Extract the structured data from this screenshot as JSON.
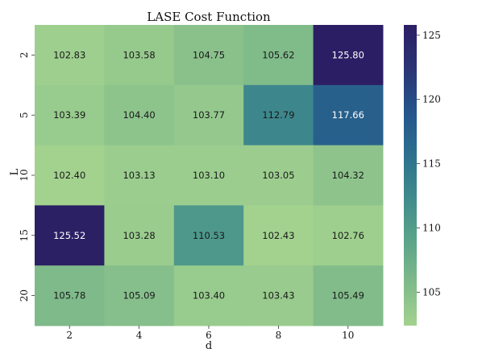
{
  "chart_data": {
    "type": "heatmap",
    "title": "LASE Cost Function",
    "xlabel": "d",
    "ylabel": "L",
    "x_categories": [
      "2",
      "4",
      "6",
      "8",
      "10"
    ],
    "y_categories": [
      "2",
      "5",
      "10",
      "15",
      "20"
    ],
    "values": [
      [
        102.83,
        103.58,
        104.75,
        105.62,
        125.8
      ],
      [
        103.39,
        104.4,
        103.77,
        112.79,
        117.66
      ],
      [
        102.4,
        103.13,
        103.1,
        103.05,
        104.32
      ],
      [
        125.52,
        103.28,
        110.53,
        102.43,
        102.76
      ],
      [
        105.78,
        105.09,
        103.4,
        103.43,
        105.49
      ]
    ],
    "labels": [
      [
        "102.83",
        "103.58",
        "104.75",
        "105.62",
        "125.80"
      ],
      [
        "103.39",
        "104.40",
        "103.77",
        "112.79",
        "117.66"
      ],
      [
        "102.40",
        "103.13",
        "103.10",
        "103.05",
        "104.32"
      ],
      [
        "125.52",
        "103.28",
        "110.53",
        "102.43",
        "102.76"
      ],
      [
        "105.78",
        "105.09",
        "103.40",
        "103.43",
        "105.49"
      ]
    ],
    "colorbar": {
      "range": [
        102.4,
        125.8
      ],
      "ticks": [
        105,
        110,
        115,
        120,
        125
      ],
      "tick_labels": [
        "105",
        "110",
        "115",
        "120",
        "125"
      ],
      "colormap": "crest",
      "color_stops": [
        "#a3d28f",
        "#7fba8a",
        "#5aa38a",
        "#3f8a8c",
        "#2c6f8e",
        "#25548b",
        "#2a3474",
        "#2c1e64"
      ]
    }
  }
}
